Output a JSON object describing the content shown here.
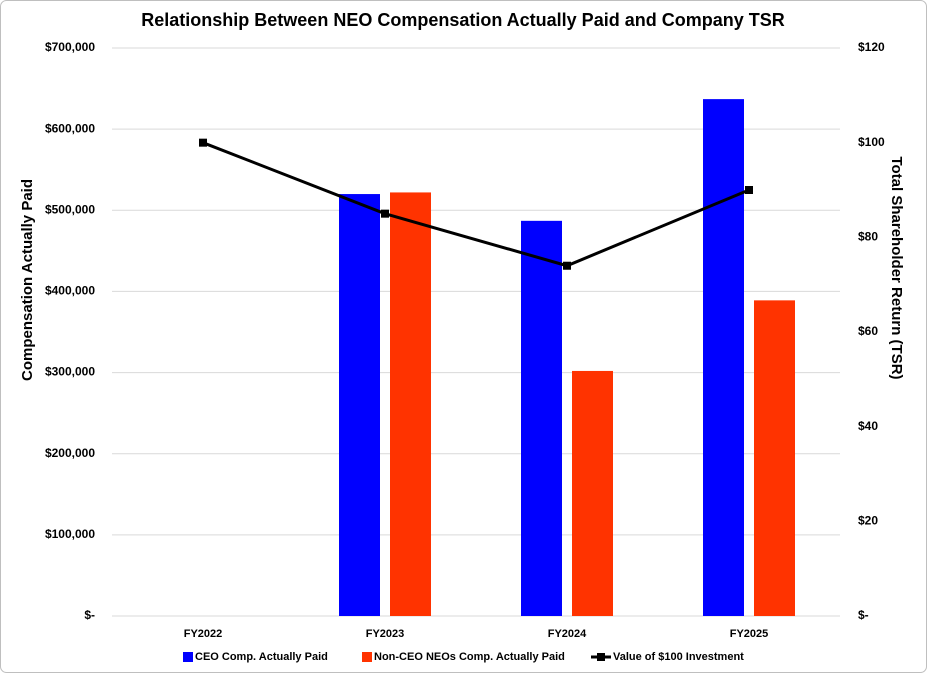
{
  "chart_data": {
    "type": "bar",
    "title": "Relationship Between NEO Compensation Actually Paid and Company TSR",
    "y_label": "Compensation Actually Paid",
    "y2_label": "Total Shareholder Return (TSR)",
    "categories": [
      "FY2022",
      "FY2023",
      "FY2024",
      "FY2025"
    ],
    "series": [
      {
        "name": "CEO Comp. Actually Paid",
        "color": "#0000ff",
        "type": "bar",
        "values": [
          null,
          520000,
          487000,
          637000
        ]
      },
      {
        "name": "Non-CEO NEOs Comp. Actually Paid",
        "color": "#ff3300",
        "type": "bar",
        "values": [
          null,
          522000,
          302000,
          389000
        ]
      },
      {
        "name": "Value of $100 Investment",
        "color": "#000000",
        "type": "line",
        "axis": "y2",
        "values": [
          100,
          85,
          74,
          90
        ]
      }
    ],
    "ylim": [
      0,
      700000
    ],
    "yticks": [
      {
        "value": 0,
        "label": "$-"
      },
      {
        "value": 100000,
        "label": "$100,000"
      },
      {
        "value": 200000,
        "label": "$200,000"
      },
      {
        "value": 300000,
        "label": "$300,000"
      },
      {
        "value": 400000,
        "label": "$400,000"
      },
      {
        "value": 500000,
        "label": "$500,000"
      },
      {
        "value": 600000,
        "label": "$600,000"
      },
      {
        "value": 700000,
        "label": "$700,000"
      }
    ],
    "y2lim": [
      0,
      120
    ],
    "y2ticks": [
      {
        "value": 0,
        "label": "$-"
      },
      {
        "value": 20,
        "label": "$20"
      },
      {
        "value": 40,
        "label": "$40"
      },
      {
        "value": 60,
        "label": "$60"
      },
      {
        "value": 80,
        "label": "$80"
      },
      {
        "value": 100,
        "label": "$100"
      },
      {
        "value": 120,
        "label": "$120"
      }
    ],
    "grid": true,
    "legend": "bottom"
  }
}
